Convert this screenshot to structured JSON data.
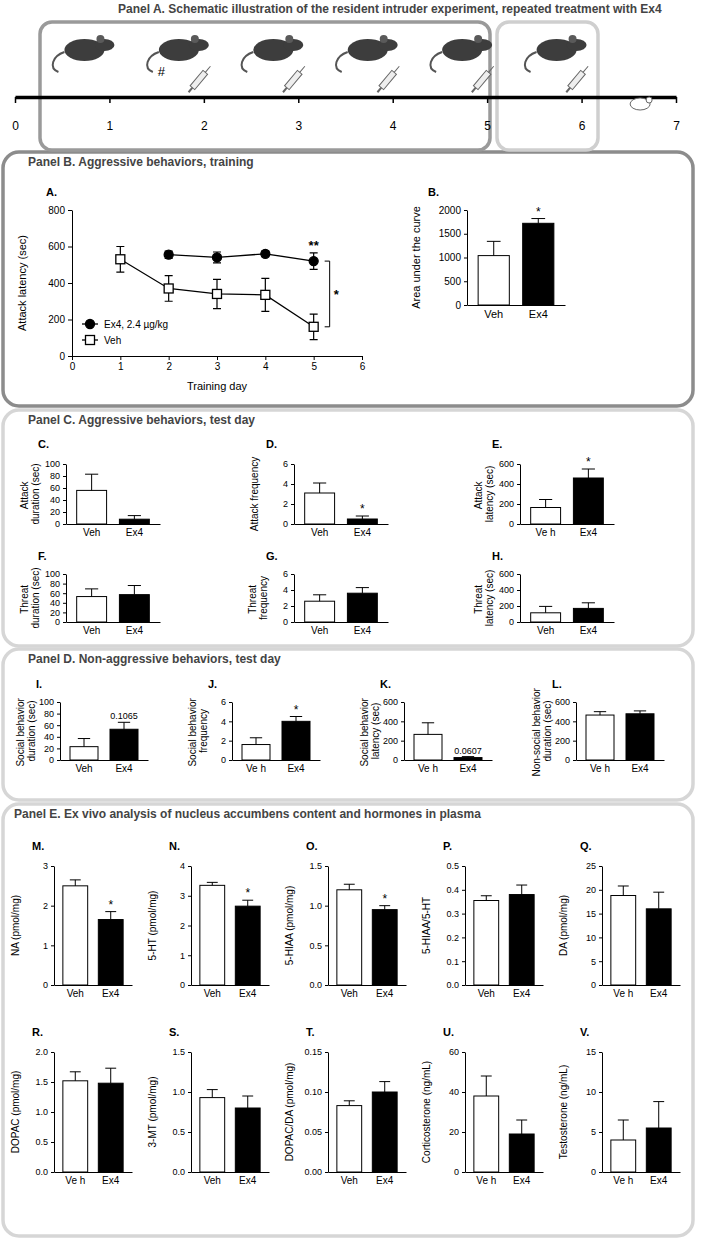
{
  "panels": [
    "Panel A. Schematic illustration of the resident intruder experiment, repeated treatment with Ex4",
    "Panel B. Aggressive behaviors, training",
    "Panel C. Aggressive behaviors, test day",
    "Panel D. Non-aggressive behaviors, test day",
    "Panel E. Ex vivo analysis of nucleus accumbens content and hormones in plasma"
  ],
  "chart_data": [
    {
      "type": "timeline",
      "xlim": [
        0,
        7
      ],
      "xticks": [
        0,
        1,
        2,
        3,
        4,
        5,
        6,
        7
      ],
      "annotations": [
        "#"
      ]
    },
    {
      "type": "line",
      "title": "A.",
      "xlabel": "Training day",
      "ylabel": "Attack latency (sec)",
      "xlim": [
        0,
        6
      ],
      "xticks": [
        0,
        1,
        2,
        3,
        4,
        5,
        6
      ],
      "ylim": [
        0,
        800
      ],
      "yticks": [
        0,
        200,
        400,
        600,
        800
      ],
      "legend": "lower left",
      "annotations": [
        "*"
      ],
      "series": [
        {
          "name": "Ex4, 2.4 µg/kg",
          "color": "#000000",
          "marker": "circle",
          "x": [
            2,
            3,
            4,
            5
          ],
          "values": [
            555,
            540,
            560,
            520
          ],
          "errors": [
            20,
            30,
            15,
            45
          ],
          "annotations": [
            null,
            null,
            null,
            "**"
          ]
        },
        {
          "name": "Veh",
          "color": "#000000",
          "marker": "open-square",
          "x": [
            1,
            2,
            3,
            4,
            5
          ],
          "values": [
            530,
            370,
            340,
            335,
            160
          ],
          "errors": [
            70,
            70,
            80,
            90,
            70
          ]
        }
      ]
    },
    {
      "type": "bar",
      "title": "B.",
      "ylabel": "Area under the curve",
      "categories": [
        "Veh",
        "Ex4"
      ],
      "values": [
        1040,
        1720
      ],
      "errors": [
        300,
        100
      ],
      "colors": [
        "#ffffff",
        "#000000"
      ],
      "annotations": [
        null,
        "*"
      ],
      "ylim": [
        0,
        2000
      ],
      "yticks": [
        0,
        500,
        1000,
        1500,
        2000
      ]
    },
    {
      "type": "bar",
      "title": "C.",
      "ylabel": "Attack duration (sec)",
      "categories": [
        "Veh",
        "Ex4"
      ],
      "values": [
        56,
        8
      ],
      "errors": [
        27,
        6
      ],
      "colors": [
        "#ffffff",
        "#000000"
      ],
      "ylim": [
        0,
        100
      ],
      "yticks": [
        0,
        20,
        40,
        60,
        80,
        100
      ]
    },
    {
      "type": "bar",
      "title": "D.",
      "ylabel": "Attack frequency",
      "categories": [
        "Veh",
        "Ex4"
      ],
      "values": [
        3.1,
        0.5
      ],
      "errors": [
        1,
        0.3
      ],
      "colors": [
        "#ffffff",
        "#000000"
      ],
      "annotations": [
        null,
        "*"
      ],
      "ylim": [
        0,
        6
      ],
      "yticks": [
        0,
        2,
        4,
        6
      ]
    },
    {
      "type": "bar",
      "title": "E.",
      "ylabel": "Attack latency (sec)",
      "categories": [
        "Ve h",
        "Ex4"
      ],
      "values": [
        165,
        460
      ],
      "errors": [
        80,
        90
      ],
      "colors": [
        "#ffffff",
        "#000000"
      ],
      "annotations": [
        null,
        "*"
      ],
      "ylim": [
        0,
        600
      ],
      "yticks": [
        0,
        200,
        400,
        600
      ]
    },
    {
      "type": "bar",
      "title": "F.",
      "ylabel": "Threat duration (sec)",
      "categories": [
        "Veh",
        "Ex4"
      ],
      "values": [
        53,
        57
      ],
      "errors": [
        16,
        19
      ],
      "colors": [
        "#ffffff",
        "#000000"
      ],
      "ylim": [
        0,
        100
      ],
      "yticks": [
        0,
        20,
        40,
        60,
        80,
        100
      ]
    },
    {
      "type": "bar",
      "title": "G.",
      "ylabel": "Threat frequency",
      "categories": [
        "Veh",
        "Ex4"
      ],
      "values": [
        2.6,
        3.6
      ],
      "errors": [
        0.8,
        0.7
      ],
      "colors": [
        "#ffffff",
        "#000000"
      ],
      "ylim": [
        0,
        6
      ],
      "yticks": [
        0,
        2,
        4,
        6
      ]
    },
    {
      "type": "bar",
      "title": "H.",
      "ylabel": "Threat latency (sec)",
      "categories": [
        "Veh",
        "Ex4"
      ],
      "values": [
        115,
        170
      ],
      "errors": [
        80,
        70
      ],
      "colors": [
        "#ffffff",
        "#000000"
      ],
      "ylim": [
        0,
        600
      ],
      "yticks": [
        0,
        200,
        400,
        600
      ]
    },
    {
      "type": "bar",
      "title": "I.",
      "ylabel": "Social behavior duration (sec)",
      "categories": [
        "Veh",
        "Ex4"
      ],
      "values": [
        23,
        53
      ],
      "errors": [
        14,
        12
      ],
      "colors": [
        "#ffffff",
        "#000000"
      ],
      "annotations": [
        null,
        "0.1065"
      ],
      "ylim": [
        0,
        100
      ],
      "yticks": [
        0,
        20,
        40,
        60,
        80,
        100
      ]
    },
    {
      "type": "bar",
      "title": "J.",
      "ylabel": "Social behavior frequency",
      "categories": [
        "Ve h",
        "Ex4"
      ],
      "values": [
        1.6,
        4.0
      ],
      "errors": [
        0.7,
        0.5
      ],
      "colors": [
        "#ffffff",
        "#000000"
      ],
      "annotations": [
        null,
        "*"
      ],
      "ylim": [
        0,
        6
      ],
      "yticks": [
        0,
        2,
        4,
        6
      ]
    },
    {
      "type": "bar",
      "title": "K.",
      "ylabel": "Social behavior latency (sec)",
      "categories": [
        "Ve h",
        "Ex4"
      ],
      "values": [
        265,
        25
      ],
      "errors": [
        120,
        10
      ],
      "colors": [
        "#ffffff",
        "#000000"
      ],
      "annotations": [
        null,
        "0.0607"
      ],
      "ylim": [
        0,
        600
      ],
      "yticks": [
        0,
        200,
        400,
        600
      ]
    },
    {
      "type": "bar",
      "title": "L.",
      "ylabel": "Non-social behavior duration (sec)",
      "categories": [
        "Ve h",
        "Ex4"
      ],
      "values": [
        465,
        478
      ],
      "errors": [
        35,
        30
      ],
      "colors": [
        "#ffffff",
        "#000000"
      ],
      "ylim": [
        0,
        600
      ],
      "yticks": [
        0,
        200,
        400,
        600
      ]
    },
    {
      "type": "bar",
      "title": "M.",
      "ylabel": "NA (pmol/mg)",
      "categories": [
        "Veh",
        "Ex4"
      ],
      "values": [
        2.5,
        1.65
      ],
      "errors": [
        0.15,
        0.2
      ],
      "colors": [
        "#ffffff",
        "#000000"
      ],
      "annotations": [
        null,
        "*"
      ],
      "ylim": [
        0,
        3
      ],
      "yticks": [
        0,
        1,
        2,
        3
      ]
    },
    {
      "type": "bar",
      "title": "N.",
      "ylabel": "5-HT (pmol/mg)",
      "categories": [
        "Veh",
        "Ex4"
      ],
      "values": [
        3.35,
        2.65
      ],
      "errors": [
        0.1,
        0.2
      ],
      "colors": [
        "#ffffff",
        "#000000"
      ],
      "annotations": [
        null,
        "*"
      ],
      "ylim": [
        0,
        4
      ],
      "yticks": [
        0,
        1,
        2,
        3,
        4
      ]
    },
    {
      "type": "bar",
      "title": "O.",
      "ylabel": "5-HIAA (pmol/mg)",
      "categories": [
        "Veh",
        "Ex4"
      ],
      "values": [
        1.2,
        0.95
      ],
      "errors": [
        0.07,
        0.05
      ],
      "colors": [
        "#ffffff",
        "#000000"
      ],
      "annotations": [
        null,
        "*"
      ],
      "ylim": [
        0,
        1.5
      ],
      "yticks": [
        {
          "value": 0,
          "label": "0.0"
        },
        0.5,
        {
          "value": 1,
          "label": "1.0"
        },
        1.5
      ]
    },
    {
      "type": "bar",
      "title": "P.",
      "ylabel": "5-HIAA/5-HT",
      "categories": [
        "Veh",
        "Ex4"
      ],
      "values": [
        0.355,
        0.38
      ],
      "errors": [
        0.02,
        0.04
      ],
      "colors": [
        "#ffffff",
        "#000000"
      ],
      "ylim": [
        0,
        0.5
      ],
      "yticks": [
        {
          "value": 0,
          "label": "0.0"
        },
        0.1,
        0.2,
        0.3,
        0.4,
        0.5
      ]
    },
    {
      "type": "bar",
      "title": "Q.",
      "ylabel": "DA (pmol/mg)",
      "categories": [
        "Ve h",
        "Ex4"
      ],
      "values": [
        18.8,
        16
      ],
      "errors": [
        2,
        3.5
      ],
      "colors": [
        "#ffffff",
        "#000000"
      ],
      "ylim": [
        0,
        25
      ],
      "yticks": [
        0,
        5,
        10,
        15,
        20,
        25
      ]
    },
    {
      "type": "bar",
      "title": "R.",
      "ylabel": "DOPAC (pmol/mg)",
      "categories": [
        "Ve h",
        "Ex4"
      ],
      "values": [
        1.52,
        1.48
      ],
      "errors": [
        0.15,
        0.25
      ],
      "colors": [
        "#ffffff",
        "#000000"
      ],
      "ylim": [
        0,
        2
      ],
      "yticks": [
        {
          "value": 0,
          "label": "0.0"
        },
        0.5,
        {
          "value": 1,
          "label": "1.0"
        },
        1.5,
        {
          "value": 2,
          "label": "2.0"
        }
      ]
    },
    {
      "type": "bar",
      "title": "S.",
      "ylabel": "3-MT (pmol/mg)",
      "categories": [
        "Veh",
        "Ex4"
      ],
      "values": [
        0.93,
        0.8
      ],
      "errors": [
        0.1,
        0.15
      ],
      "colors": [
        "#ffffff",
        "#000000"
      ],
      "ylim": [
        0,
        1.5
      ],
      "yticks": [
        {
          "value": 0,
          "label": "0.0"
        },
        0.5,
        {
          "value": 1,
          "label": "1.0"
        },
        1.5
      ]
    },
    {
      "type": "bar",
      "title": "T.",
      "ylabel": "DOPAC/DA (pmol/mg)",
      "categories": [
        "Veh",
        "Ex4"
      ],
      "values": [
        0.083,
        0.1
      ],
      "errors": [
        0.006,
        0.013
      ],
      "colors": [
        "#ffffff",
        "#000000"
      ],
      "ylim": [
        0,
        0.15
      ],
      "yticks": [
        {
          "value": 0,
          "label": "0.00"
        },
        0.05,
        {
          "value": 0.1,
          "label": "0.10"
        },
        0.15
      ]
    },
    {
      "type": "bar",
      "title": "U.",
      "ylabel": "Corticosterone (ng/mL)",
      "categories": [
        "Ve h",
        "Ex4"
      ],
      "values": [
        38,
        19
      ],
      "errors": [
        10,
        7
      ],
      "colors": [
        "#ffffff",
        "#000000"
      ],
      "ylim": [
        0,
        60
      ],
      "yticks": [
        0,
        20,
        40,
        60
      ]
    },
    {
      "type": "bar",
      "title": "V.",
      "ylabel": "Testosterone (ng/mL)",
      "categories": [
        "Ve h",
        "Ex4"
      ],
      "values": [
        4,
        5.5
      ],
      "errors": [
        2.5,
        3.3
      ],
      "colors": [
        "#ffffff",
        "#000000"
      ],
      "ylim": [
        0,
        15
      ],
      "yticks": [
        0,
        5,
        10,
        15
      ]
    }
  ]
}
